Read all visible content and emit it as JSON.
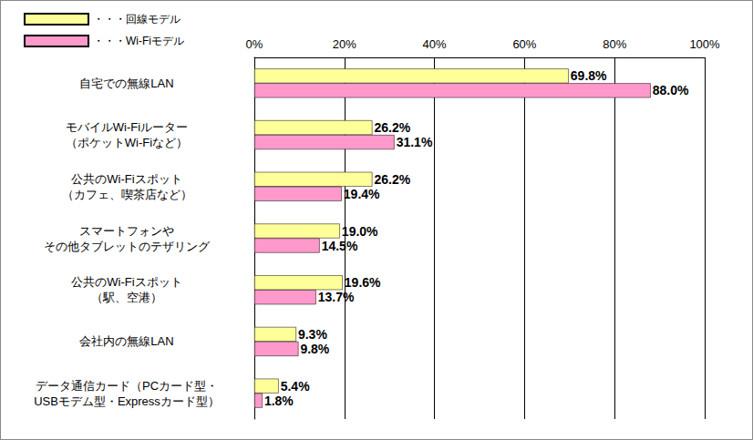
{
  "chart_data": {
    "type": "bar",
    "orientation": "horizontal",
    "categories": [
      "自宅での無線LAN",
      "モバイルWi-Fiルーター\n（ポケットWi-Fiなど）",
      "公共のWi-Fiスポット\n（カフェ、喫茶店など）",
      "スマートフォンや\nその他タブレットのテザリング",
      "公共のWi-Fiスポット\n（駅、空港）",
      "会社内の無線LAN",
      "データ通信カード（PCカード型・\nUSBモデム型・Expressカード型）"
    ],
    "series": [
      {
        "name": "・・・回線モデル",
        "color": "#ffff99",
        "values": [
          69.8,
          26.2,
          26.2,
          19.0,
          19.6,
          9.3,
          5.4
        ],
        "value_labels": [
          "69.8%",
          "26.2%",
          "26.2%",
          "19.0%",
          "19.6%",
          "9.3%",
          "5.4%"
        ]
      },
      {
        "name": "・・・Wi-Fiモデル",
        "color": "#ff99cc",
        "values": [
          88.0,
          31.1,
          19.4,
          14.5,
          13.7,
          9.8,
          1.8
        ],
        "value_labels": [
          "88.0%",
          "31.1%",
          "19.4%",
          "14.5%",
          "13.7%",
          "9.8%",
          "1.8%"
        ]
      }
    ],
    "xlim": [
      0,
      100
    ],
    "xticks": [
      {
        "value": 0,
        "label": "0%"
      },
      {
        "value": 20,
        "label": "20%"
      },
      {
        "value": 40,
        "label": "40%"
      },
      {
        "value": 60,
        "label": "60%"
      },
      {
        "value": 80,
        "label": "80%"
      },
      {
        "value": 100,
        "label": "100%"
      }
    ],
    "grid": true,
    "legend": "top-left",
    "data_labels": true
  }
}
